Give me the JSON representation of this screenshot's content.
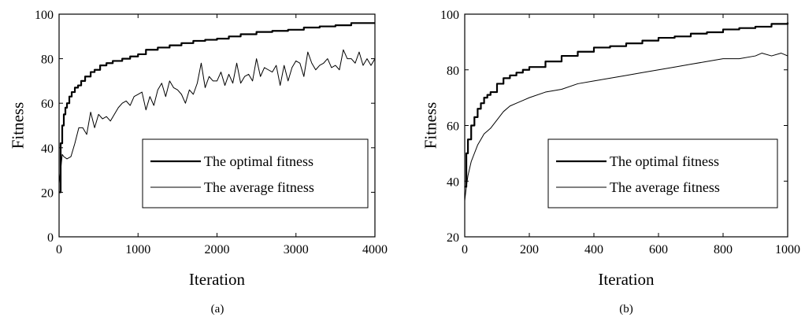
{
  "chart_data": [
    {
      "type": "line",
      "panel_label": "(a)",
      "xlabel": "Iteration",
      "ylabel": "Fitness",
      "xlim": [
        0,
        4000
      ],
      "ylim": [
        0,
        100
      ],
      "xticks": [
        0,
        1000,
        2000,
        3000,
        4000
      ],
      "yticks": [
        0,
        20,
        40,
        60,
        80,
        100
      ],
      "grid": false,
      "legend_position": "center-right",
      "series": [
        {
          "name": "The optimal fitness",
          "style": "thick-step",
          "x": [
            0,
            20,
            40,
            60,
            80,
            100,
            130,
            160,
            200,
            240,
            280,
            330,
            400,
            450,
            520,
            600,
            680,
            800,
            900,
            1000,
            1100,
            1250,
            1400,
            1550,
            1700,
            1850,
            2000,
            2150,
            2300,
            2500,
            2700,
            2900,
            3100,
            3300,
            3500,
            3700,
            4000
          ],
          "values": [
            20,
            42,
            50,
            55,
            58,
            60,
            63,
            65,
            67,
            68,
            70,
            72,
            74,
            75,
            77,
            78,
            79,
            80,
            81,
            82,
            84,
            85,
            86,
            87,
            88,
            88.5,
            89,
            90,
            91,
            92,
            92.5,
            93,
            94,
            94.5,
            95,
            96,
            96
          ]
        },
        {
          "name": "The average fitness",
          "style": "thin",
          "x": [
            0,
            20,
            40,
            60,
            100,
            150,
            200,
            250,
            300,
            350,
            400,
            450,
            500,
            550,
            600,
            650,
            700,
            750,
            800,
            850,
            900,
            950,
            1000,
            1050,
            1100,
            1150,
            1200,
            1250,
            1300,
            1350,
            1400,
            1450,
            1500,
            1550,
            1600,
            1650,
            1700,
            1750,
            1800,
            1850,
            1900,
            1950,
            2000,
            2050,
            2100,
            2150,
            2200,
            2250,
            2300,
            2350,
            2400,
            2450,
            2500,
            2550,
            2600,
            2650,
            2700,
            2750,
            2800,
            2850,
            2900,
            2950,
            3000,
            3050,
            3100,
            3150,
            3200,
            3250,
            3300,
            3350,
            3400,
            3450,
            3500,
            3550,
            3600,
            3650,
            3700,
            3750,
            3800,
            3850,
            3900,
            3950,
            4000
          ],
          "values": [
            24,
            30,
            37,
            36,
            35,
            36,
            42,
            49,
            49,
            46,
            56,
            49,
            55,
            53,
            54,
            52,
            55,
            58,
            60,
            61,
            59,
            63,
            64,
            65,
            57,
            63,
            59,
            66,
            69,
            63,
            70,
            67,
            66,
            64,
            60,
            66,
            64,
            69,
            78,
            67,
            72,
            70,
            70,
            74,
            68,
            73,
            69,
            78,
            69,
            72,
            73,
            70,
            80,
            72,
            76,
            75,
            74,
            77,
            68,
            77,
            70,
            76,
            79,
            78,
            72,
            83,
            78,
            75,
            77,
            78,
            80,
            76,
            77,
            75,
            84,
            80,
            80,
            78,
            83,
            77,
            80,
            77,
            80
          ]
        }
      ]
    },
    {
      "type": "line",
      "panel_label": "(b)",
      "xlabel": "Iteration",
      "ylabel": "Fitness",
      "xlim": [
        0,
        1000
      ],
      "ylim": [
        20,
        100
      ],
      "xticks": [
        0,
        200,
        400,
        600,
        800,
        1000
      ],
      "yticks": [
        20,
        40,
        60,
        80,
        100
      ],
      "grid": false,
      "legend_position": "center-right",
      "series": [
        {
          "name": "The optimal fitness",
          "style": "thick-step",
          "x": [
            0,
            5,
            10,
            20,
            30,
            40,
            50,
            60,
            70,
            80,
            100,
            120,
            140,
            160,
            180,
            200,
            250,
            300,
            350,
            400,
            450,
            500,
            550,
            600,
            650,
            700,
            750,
            800,
            850,
            900,
            950,
            1000
          ],
          "values": [
            38,
            50,
            55,
            60,
            63,
            66,
            68,
            70,
            71,
            72,
            75,
            77,
            78,
            79,
            80,
            81,
            83,
            85,
            86.5,
            88,
            88.5,
            89.5,
            90.5,
            91.5,
            92,
            93,
            93.5,
            94.5,
            95,
            95.5,
            96.5,
            97
          ]
        },
        {
          "name": "The average fitness",
          "style": "thin",
          "x": [
            0,
            5,
            10,
            20,
            30,
            40,
            50,
            60,
            70,
            80,
            100,
            120,
            140,
            160,
            180,
            200,
            250,
            300,
            350,
            400,
            450,
            500,
            550,
            600,
            650,
            700,
            750,
            800,
            850,
            900,
            920,
            950,
            980,
            1000
          ],
          "values": [
            33,
            38,
            42,
            47,
            50,
            53,
            55,
            57,
            58,
            59,
            62,
            65,
            67,
            68,
            69,
            70,
            72,
            73,
            75,
            76,
            77,
            78,
            79,
            80,
            81,
            82,
            83,
            84,
            84,
            85,
            86,
            85,
            86,
            85
          ]
        }
      ]
    }
  ]
}
